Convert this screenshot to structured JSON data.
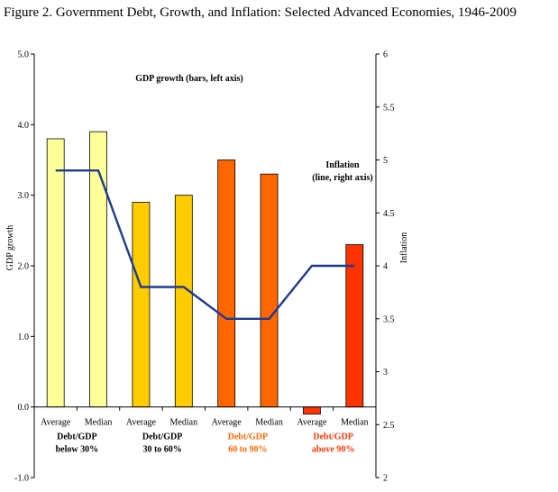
{
  "title": "Figure 2. Government Debt, Growth, and Inflation:  Selected Advanced Economies, 1946-2009",
  "chart_data": {
    "type": "bar",
    "categories": [
      "Average",
      "Median",
      "Average",
      "Median",
      "Average",
      "Median",
      "Average",
      "Median"
    ],
    "groups": [
      {
        "line1": "Debt/GDP",
        "line2": "below 30%",
        "color": "#000000"
      },
      {
        "line1": "Debt/GDP",
        "line2": "30 to 60%",
        "color": "#000000"
      },
      {
        "line1": "Debt/GDP",
        "line2": "60 to 90%",
        "color": "#FF6600"
      },
      {
        "line1": "Debt/GDP",
        "line2": "above 90%",
        "color": "#FF3300"
      }
    ],
    "bar_colors": [
      "#FFFF99",
      "#FFFF99",
      "#FFCC00",
      "#FFCC00",
      "#FF6600",
      "#FF6600",
      "#FF3300",
      "#FF3300"
    ],
    "series": [
      {
        "name": "GDP growth (bars, left axis)",
        "axis": "left",
        "values": [
          3.8,
          3.9,
          2.9,
          3.0,
          3.5,
          3.3,
          -0.1,
          2.3
        ]
      },
      {
        "name": "Inflation",
        "axis": "right",
        "values": [
          4.9,
          4.9,
          3.8,
          3.8,
          3.5,
          3.5,
          4.0,
          4.0
        ]
      }
    ],
    "ylabel": "GDP growth",
    "y2label": "Inflation",
    "ylim": [
      -1.0,
      5.0
    ],
    "y2lim": [
      2,
      6
    ],
    "yticks": [
      "-1.0",
      "0.0",
      "1.0",
      "2.0",
      "3.0",
      "4.0",
      "5.0"
    ],
    "y2ticks": [
      "2",
      "2.5",
      "3",
      "3.5",
      "4",
      "4.5",
      "5",
      "5.5",
      "6"
    ],
    "bar_annotation": "GDP growth (bars, left axis)",
    "line_annotation": [
      "Inflation",
      "(line, right axis)"
    ],
    "line_color": "#1F3A93"
  }
}
